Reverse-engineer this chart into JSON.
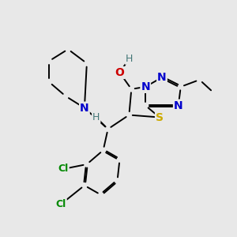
{
  "background_color": "#e8e8e8",
  "figure_size": [
    3.0,
    3.0
  ],
  "dpi": 100,
  "bond_color": "#000000",
  "bond_width": 1.4,
  "bg": "#e8e8e8",
  "colors": {
    "N": "#0000cc",
    "S": "#ccaa00",
    "O": "#cc0000",
    "H": "#447777",
    "Cl": "#008800",
    "C": "#000000"
  }
}
